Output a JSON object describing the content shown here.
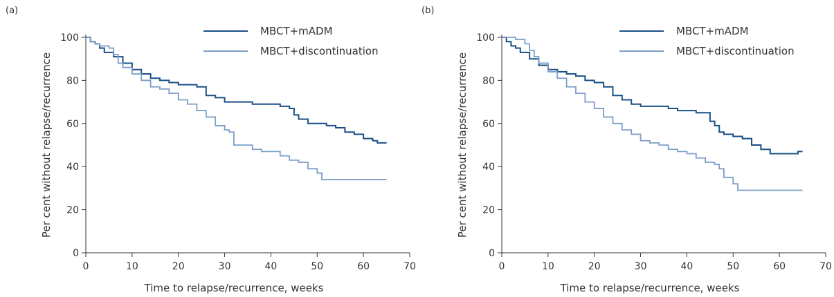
{
  "chart_data": [
    {
      "type": "line",
      "panel_label": "(a)",
      "xlabel": "Time to relapse/recurrence, weeks",
      "ylabel": "Per cent without relapse/recurrence",
      "xlim": [
        0,
        70
      ],
      "ylim": [
        0,
        100
      ],
      "xticks": [
        0,
        10,
        20,
        30,
        40,
        50,
        60,
        70
      ],
      "yticks": [
        0,
        20,
        40,
        60,
        80,
        100
      ],
      "grid": false,
      "legend": "top-right",
      "series": [
        {
          "name": "MBCT+mADM",
          "color": "#1a4f86",
          "x": [
            0,
            1,
            2,
            3,
            4,
            6,
            8,
            10,
            12,
            14,
            16,
            18,
            20,
            22,
            24,
            26,
            28,
            30,
            32,
            36,
            40,
            42,
            44,
            45,
            46,
            47,
            48,
            50,
            52,
            54,
            56,
            58,
            60,
            62,
            63,
            64,
            65
          ],
          "y": [
            100,
            98,
            97,
            95,
            93,
            91,
            88,
            85,
            83,
            81,
            80,
            79,
            78,
            78,
            77,
            73,
            72,
            70,
            70,
            69,
            69,
            68,
            67,
            64,
            62,
            62,
            60,
            60,
            59,
            58,
            56,
            55,
            53,
            52,
            51,
            51,
            51
          ]
        },
        {
          "name": "MBCT+discontinuation",
          "color": "#7b9ec9",
          "x": [
            0,
            1,
            2,
            3,
            4,
            5,
            6,
            7,
            8,
            10,
            12,
            14,
            16,
            18,
            20,
            22,
            24,
            26,
            28,
            30,
            31,
            32,
            34,
            36,
            38,
            40,
            42,
            44,
            46,
            48,
            50,
            51,
            52,
            54,
            56,
            58,
            60,
            62,
            65
          ],
          "y": [
            100,
            98,
            97,
            96,
            96,
            95,
            92,
            88,
            86,
            83,
            80,
            77,
            76,
            74,
            71,
            69,
            66,
            63,
            59,
            57,
            56,
            50,
            50,
            48,
            47,
            47,
            45,
            43,
            42,
            39,
            37,
            34,
            34,
            34,
            34,
            34,
            34,
            34,
            34
          ]
        }
      ]
    },
    {
      "type": "line",
      "panel_label": "(b)",
      "xlabel": "Time to relapse/recurrence, weeks",
      "ylabel": "Per cent without relapse/recurrence",
      "xlim": [
        0,
        70
      ],
      "ylim": [
        0,
        100
      ],
      "xticks": [
        0,
        10,
        20,
        30,
        40,
        50,
        60,
        70
      ],
      "yticks": [
        0,
        20,
        40,
        60,
        80,
        100
      ],
      "grid": false,
      "legend": "top-right",
      "series": [
        {
          "name": "MBCT+mADM",
          "color": "#1a4f86",
          "x": [
            0,
            1,
            2,
            3,
            4,
            6,
            8,
            10,
            12,
            14,
            16,
            18,
            20,
            22,
            24,
            26,
            28,
            30,
            32,
            34,
            36,
            38,
            40,
            42,
            44,
            45,
            46,
            47,
            48,
            50,
            52,
            54,
            56,
            58,
            60,
            62,
            64,
            65
          ],
          "y": [
            100,
            98,
            96,
            95,
            93,
            90,
            87,
            85,
            84,
            83,
            82,
            80,
            79,
            77,
            73,
            71,
            69,
            68,
            68,
            68,
            67,
            66,
            66,
            65,
            65,
            61,
            59,
            56,
            55,
            54,
            53,
            50,
            48,
            46,
            46,
            46,
            47,
            47
          ]
        },
        {
          "name": "MBCT+discontinuation",
          "color": "#7b9ec9",
          "x": [
            0,
            1,
            2,
            3,
            4,
            5,
            6,
            7,
            8,
            10,
            12,
            14,
            16,
            18,
            20,
            22,
            24,
            26,
            28,
            30,
            32,
            34,
            36,
            38,
            40,
            42,
            44,
            46,
            47,
            48,
            50,
            51,
            52,
            54,
            56,
            58,
            60,
            65
          ],
          "y": [
            100,
            100,
            100,
            99,
            99,
            97,
            94,
            91,
            88,
            84,
            81,
            77,
            74,
            70,
            67,
            63,
            60,
            57,
            55,
            52,
            51,
            50,
            48,
            47,
            46,
            44,
            42,
            41,
            39,
            35,
            32,
            29,
            29,
            29,
            29,
            29,
            29,
            29
          ]
        }
      ]
    }
  ]
}
